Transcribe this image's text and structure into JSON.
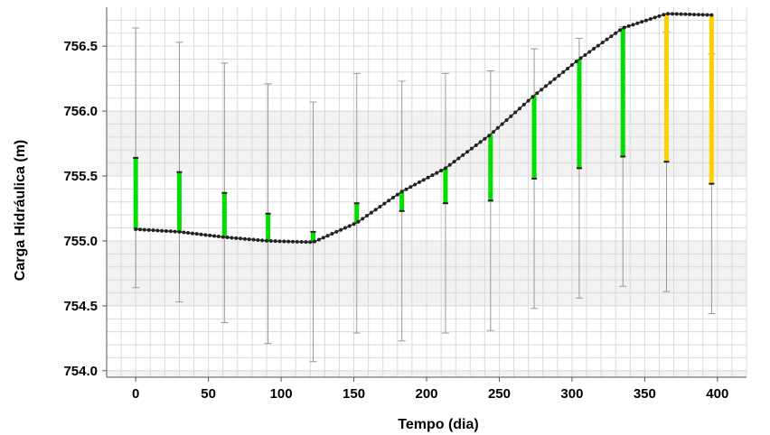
{
  "chart_data": {
    "type": "line",
    "title": "",
    "xlabel": "Tempo (dia)",
    "ylabel": "Carga Hidráulica (m)",
    "xlim": [
      -20,
      420
    ],
    "ylim": [
      753.95,
      756.8
    ],
    "x_ticks": [
      0,
      50,
      100,
      150,
      200,
      250,
      300,
      350,
      400
    ],
    "y_ticks": [
      754.0,
      754.5,
      755.0,
      755.5,
      756.0,
      756.5
    ],
    "x_tick_labels": [
      "0",
      "50",
      "100",
      "150",
      "200",
      "250",
      "300",
      "350",
      "400"
    ],
    "y_tick_labels": [
      "754.0",
      "754.5",
      "755.0",
      "755.5",
      "756.0",
      "756.5"
    ],
    "grid": true,
    "legend": "none",
    "series": [
      {
        "kind": "simulated_line",
        "color": "#333333",
        "x": [
          0,
          30,
          60,
          91,
          122,
          152,
          183,
          213,
          244,
          274,
          305,
          335,
          365,
          396
        ],
        "y": [
          755.09,
          755.07,
          755.03,
          755.0,
          754.99,
          755.14,
          755.38,
          755.56,
          755.82,
          756.12,
          756.4,
          756.64,
          756.75,
          756.74
        ]
      },
      {
        "kind": "observations_with_error_bars",
        "x": [
          0,
          30,
          61,
          91,
          122,
          152,
          183,
          213,
          244,
          274,
          305,
          335,
          365,
          396
        ],
        "observed": [
          755.64,
          755.53,
          755.37,
          755.21,
          755.07,
          755.29,
          755.23,
          755.29,
          755.31,
          755.48,
          755.56,
          755.65,
          755.61,
          755.44
        ],
        "lower": [
          754.64,
          754.53,
          754.37,
          754.21,
          754.07,
          754.29,
          754.23,
          754.29,
          754.31,
          754.48,
          754.56,
          754.65,
          754.61,
          754.44
        ],
        "upper": [
          756.64,
          756.53,
          756.37,
          756.21,
          756.07,
          756.29,
          756.23,
          756.29,
          756.31,
          756.48,
          756.56,
          756.65,
          756.61,
          756.44
        ],
        "residual_color": [
          "#00dd00",
          "#00dd00",
          "#00dd00",
          "#00dd00",
          "#00dd00",
          "#00dd00",
          "#00dd00",
          "#00dd00",
          "#00dd00",
          "#00dd00",
          "#00dd00",
          "#00dd00",
          "#ffd000",
          "#ffd000"
        ]
      }
    ]
  },
  "colors": {
    "plot_bg": "#f2f2f2",
    "band_bg": "#ffffff",
    "grid": "#d9d9d9",
    "axis": "#555555",
    "error_bar": "#999999",
    "within": "#00dd00",
    "outside": "#ffd000"
  }
}
